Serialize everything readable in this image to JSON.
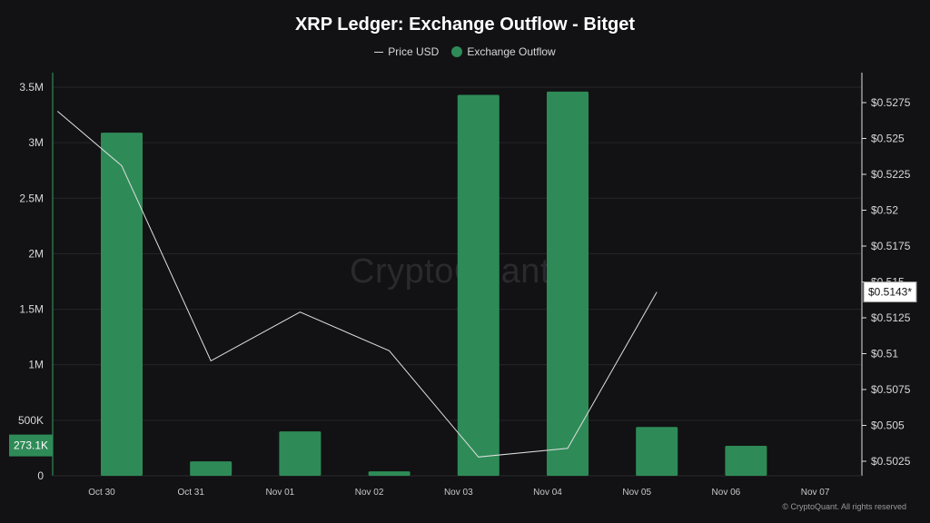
{
  "chart_data": {
    "type": "bar",
    "title": "XRP Ledger: Exchange Outflow - Bitget",
    "legend": [
      {
        "name": "Price USD",
        "marker": "line",
        "color": "#d8d8d8"
      },
      {
        "name": "Exchange Outflow",
        "marker": "circle",
        "color": "#2e8b57"
      }
    ],
    "categories": [
      "Oct 30",
      "Oct 31",
      "Nov 01",
      "Nov 02",
      "Nov 03",
      "Nov 04",
      "Nov 05",
      "Nov 06",
      "Nov 07"
    ],
    "series": [
      {
        "name": "Exchange Outflow",
        "type": "bar",
        "axis": "left",
        "color": "#2e8b57",
        "values": [
          3090000,
          130000,
          400000,
          40000,
          3430000,
          3460000,
          440000,
          270000,
          null
        ]
      },
      {
        "name": "Price USD",
        "type": "line",
        "axis": "right",
        "color": "#e0e0e0",
        "x": [
          -0.72,
          0.0,
          1.0,
          2.0,
          3.0,
          4.0,
          5.0,
          6.0
        ],
        "values": [
          0.5269,
          0.5231,
          0.5095,
          0.5129,
          0.5102,
          0.5028,
          0.5034,
          0.5143
        ]
      }
    ],
    "left_axis": {
      "ylim": [
        0,
        3500000
      ],
      "ticks": [
        0,
        500000,
        1000000,
        1500000,
        2000000,
        2500000,
        3000000,
        3500000
      ],
      "tick_labels": [
        "0",
        "500K",
        "1M",
        "1.5M",
        "2M",
        "2.5M",
        "3M",
        "3.5M"
      ]
    },
    "right_axis": {
      "ylim": [
        0.5017,
        0.5288
      ],
      "ticks": [
        0.5025,
        0.505,
        0.5075,
        0.51,
        0.5125,
        0.515,
        0.5175,
        0.52,
        0.5225,
        0.525,
        0.5275
      ],
      "tick_labels": [
        "$0.5025",
        "$0.505",
        "$0.5075",
        "$0.51",
        "$0.5125",
        "$0.515",
        "$0.5175",
        "$0.52",
        "$0.5225",
        "$0.525",
        "$0.5275"
      ]
    },
    "annotations": {
      "left_value_badge": {
        "value": 273100,
        "label": "273.1K"
      },
      "right_value_badge": {
        "value": 0.5143,
        "label": "$0.5143*"
      }
    },
    "watermark": "CryptoQuant",
    "grid": true
  },
  "copyright": "© CryptoQuant. All rights reserved"
}
